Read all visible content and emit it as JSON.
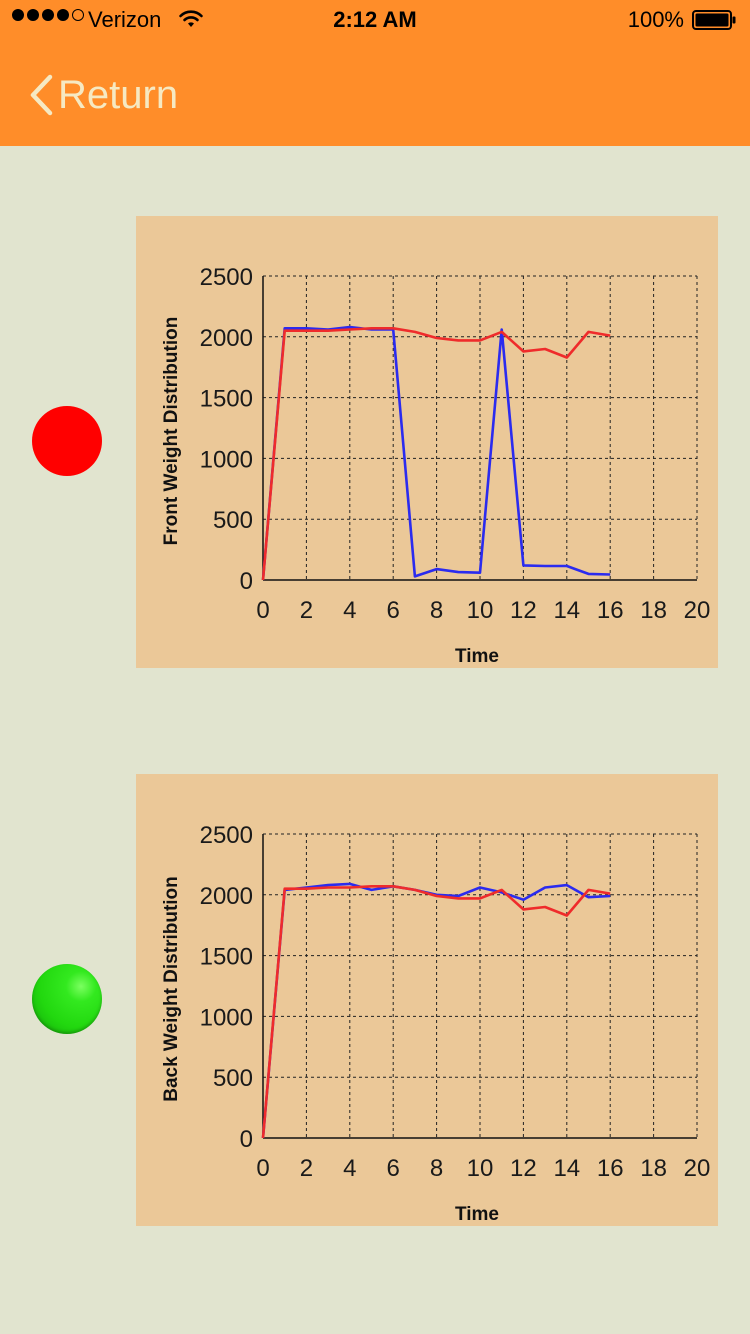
{
  "status_bar": {
    "carrier": "Verizon",
    "time": "2:12 AM",
    "battery_percent": "100%",
    "signal_bars": 4,
    "signal_max": 5
  },
  "nav": {
    "back_label": "Return"
  },
  "colors": {
    "bar": "#ff8d29",
    "background": "#e1e4cf",
    "panel": "#ebc898",
    "front_indicator": "#ff0000",
    "back_indicator": "#22d80f",
    "series_blue": "#2b2bef",
    "series_red": "#ef2b2b"
  },
  "chart_data": [
    {
      "type": "line",
      "title": "",
      "xlabel": "Time",
      "ylabel": "Front Weight Distribution",
      "xlim": [
        0,
        20
      ],
      "ylim": [
        0,
        2500
      ],
      "x_ticks": [
        0,
        2,
        4,
        6,
        8,
        10,
        12,
        14,
        16,
        18,
        20
      ],
      "y_ticks": [
        0,
        500,
        1000,
        1500,
        2000,
        2500
      ],
      "grid": true,
      "series": [
        {
          "color": "#2b2bef",
          "x": [
            0,
            1,
            2,
            3,
            4,
            5,
            6,
            7,
            8,
            9,
            10,
            11,
            12,
            13,
            14,
            15,
            16
          ],
          "y": [
            0,
            2070,
            2070,
            2060,
            2080,
            2060,
            2060,
            30,
            90,
            65,
            60,
            2060,
            120,
            115,
            115,
            50,
            45
          ]
        },
        {
          "color": "#ef2b2b",
          "x": [
            0,
            1,
            2,
            3,
            4,
            5,
            6,
            7,
            8,
            9,
            10,
            11,
            12,
            13,
            14,
            15,
            16
          ],
          "y": [
            0,
            2050,
            2050,
            2050,
            2060,
            2070,
            2070,
            2040,
            1990,
            1970,
            1970,
            2040,
            1880,
            1900,
            1830,
            2040,
            2010
          ]
        }
      ]
    },
    {
      "type": "line",
      "title": "",
      "xlabel": "Time",
      "ylabel": "Back Weight Distribution",
      "xlim": [
        0,
        20
      ],
      "ylim": [
        0,
        2500
      ],
      "x_ticks": [
        0,
        2,
        4,
        6,
        8,
        10,
        12,
        14,
        16,
        18,
        20
      ],
      "y_ticks": [
        0,
        500,
        1000,
        1500,
        2000,
        2500
      ],
      "grid": true,
      "series": [
        {
          "color": "#2b2bef",
          "x": [
            0,
            1,
            2,
            3,
            4,
            5,
            6,
            7,
            8,
            9,
            10,
            11,
            12,
            13,
            14,
            15,
            16
          ],
          "y": [
            0,
            2040,
            2060,
            2080,
            2090,
            2040,
            2070,
            2040,
            2000,
            1990,
            2060,
            2020,
            1960,
            2060,
            2080,
            1980,
            1990
          ]
        },
        {
          "color": "#ef2b2b",
          "x": [
            0,
            1,
            2,
            3,
            4,
            5,
            6,
            7,
            8,
            9,
            10,
            11,
            12,
            13,
            14,
            15,
            16
          ],
          "y": [
            0,
            2050,
            2050,
            2060,
            2060,
            2070,
            2070,
            2040,
            1990,
            1970,
            1970,
            2040,
            1880,
            1900,
            1830,
            2040,
            2010
          ]
        }
      ]
    }
  ]
}
